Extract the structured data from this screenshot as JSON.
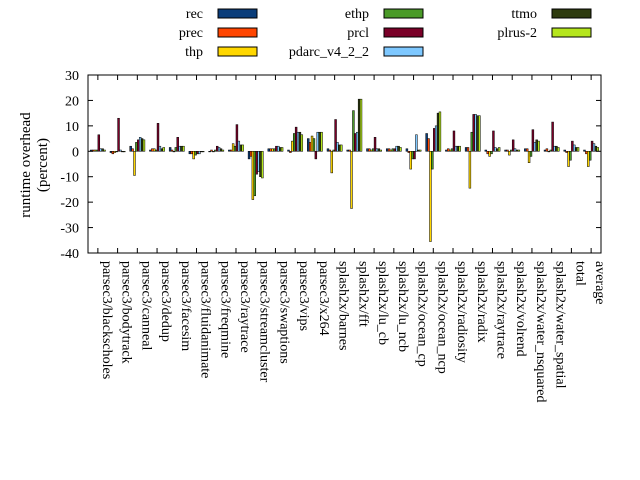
{
  "chart_data": {
    "type": "bar",
    "title": "",
    "xlabel": "",
    "ylabel": "runtime overhead\n(percent)",
    "ylim": [
      -40,
      30
    ],
    "yticks": [
      30,
      20,
      10,
      0,
      -10,
      -20,
      -30,
      -40
    ],
    "grid": false,
    "legend_position": "top",
    "categories": [
      "parsec3/blackscholes",
      "parsec3/bodytrack",
      "parsec3/canneal",
      "parsec3/dedup",
      "parsec3/facesim",
      "parsec3/fluidanimate",
      "parsec3/freqmine",
      "parsec3/raytrace",
      "parsec3/streamcluster",
      "parsec3/swaptions",
      "parsec3/vips",
      "parsec3/x264",
      "splash2x/barnes",
      "splash2x/fft",
      "splash2x/lu_cb",
      "splash2x/lu_ncb",
      "splash2x/ocean_cp",
      "splash2x/ocean_ncp",
      "splash2x/radiosity",
      "splash2x/radix",
      "splash2x/raytrace",
      "splash2x/volrend",
      "splash2x/water_nsquared",
      "splash2x/water_spatial",
      "total",
      "average"
    ],
    "series": [
      {
        "name": "rec",
        "color": "#0a3d7a",
        "values": [
          0.5,
          -0.5,
          2.0,
          0.5,
          1.5,
          -1.0,
          0.0,
          0.5,
          -3.0,
          1.0,
          0.5,
          5.0,
          1.0,
          0.5,
          1.0,
          1.0,
          1.0,
          7.0,
          0.5,
          1.5,
          0.5,
          0.5,
          1.0,
          0.5,
          0.5,
          0.5
        ]
      },
      {
        "name": "prec",
        "color": "#ff4500",
        "values": [
          0.5,
          -1.0,
          1.0,
          1.0,
          0.5,
          -1.0,
          0.5,
          0.5,
          -2.0,
          1.0,
          -0.5,
          3.5,
          0.5,
          0.5,
          1.0,
          1.0,
          -0.5,
          5.0,
          1.0,
          1.5,
          -1.0,
          0.5,
          1.0,
          1.0,
          -0.5,
          -1.0
        ]
      },
      {
        "name": "thp",
        "color": "#ffd700",
        "values": [
          0.5,
          -0.5,
          -9.5,
          1.0,
          0.0,
          -3.0,
          0.0,
          3.0,
          -19.0,
          1.0,
          4.0,
          6.0,
          -8.5,
          -22.5,
          0.5,
          0.5,
          -7.0,
          -35.5,
          0.5,
          -14.5,
          -2.0,
          -1.5,
          -4.5,
          0.0,
          -6.0,
          -6.0
        ]
      },
      {
        "name": "ethp",
        "color": "#4a9a28",
        "values": [
          0.5,
          0.0,
          3.5,
          0.5,
          1.5,
          -1.5,
          0.5,
          2.0,
          -17.5,
          1.0,
          7.0,
          5.0,
          0.5,
          16.0,
          1.0,
          1.0,
          -3.0,
          -7.0,
          1.0,
          7.5,
          -1.0,
          0.5,
          -2.0,
          0.5,
          -3.5,
          -3.5
        ]
      },
      {
        "name": "prcl",
        "color": "#7a0028",
        "values": [
          6.5,
          13.0,
          4.5,
          11.0,
          5.5,
          -1.0,
          2.0,
          10.5,
          -9.0,
          2.0,
          9.5,
          -3.0,
          12.5,
          7.0,
          5.5,
          1.0,
          -3.0,
          9.0,
          8.0,
          14.5,
          8.0,
          4.5,
          8.5,
          11.5,
          4.0,
          4.0
        ]
      },
      {
        "name": "pdarc_v4_2_2",
        "color": "#7ec8ff",
        "values": [
          1.0,
          0.5,
          5.5,
          2.0,
          2.0,
          -1.0,
          1.5,
          4.0,
          -8.0,
          2.0,
          7.5,
          7.5,
          3.5,
          7.5,
          1.0,
          2.0,
          6.5,
          10.0,
          2.0,
          14.5,
          1.5,
          1.0,
          3.5,
          2.0,
          2.5,
          3.0
        ]
      },
      {
        "name": "ttmo",
        "color": "#2e3b0e",
        "values": [
          1.0,
          0.0,
          5.0,
          1.0,
          2.0,
          0.0,
          1.0,
          2.5,
          -10.0,
          1.5,
          7.5,
          7.5,
          2.5,
          20.5,
          1.0,
          2.0,
          0.5,
          15.0,
          2.0,
          14.0,
          1.0,
          0.5,
          4.5,
          2.0,
          1.5,
          2.0
        ]
      },
      {
        "name": "plrus-2",
        "color": "#b5e61d",
        "values": [
          0.5,
          0.0,
          4.5,
          1.5,
          2.0,
          0.0,
          0.5,
          2.5,
          -10.5,
          1.5,
          6.5,
          7.5,
          2.5,
          20.5,
          0.5,
          1.5,
          0.5,
          15.5,
          2.0,
          14.0,
          1.5,
          0.5,
          4.0,
          1.5,
          1.5,
          1.5
        ]
      }
    ]
  }
}
